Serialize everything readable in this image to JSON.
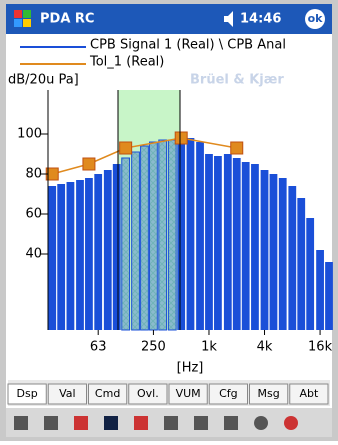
{
  "status_bar": {
    "app": "PDA RC",
    "time": "14:46",
    "ok": "ok"
  },
  "watermark": "Brüel & Kjær",
  "chart_data": {
    "type": "bar",
    "y_label": "dB/20u Pa]",
    "x_label": "[Hz]",
    "log_x": true,
    "xlim": [
      18,
      19500
    ],
    "ylim": [
      2,
      122
    ],
    "xticks": [
      63,
      250,
      {
        "value": 1000,
        "label": "1k"
      },
      {
        "value": 4000,
        "label": "4k"
      },
      {
        "value": 16000,
        "label": "16k"
      }
    ],
    "yticks": [
      40,
      60,
      80,
      100
    ],
    "series": [
      {
        "name": "CPB Signal 1 (Real) \\ CPB Anal",
        "type": "bar",
        "color": "#1a4fd8",
        "x": [
          20,
          25,
          31.5,
          40,
          50,
          63,
          80,
          100,
          125,
          160,
          200,
          250,
          315,
          400,
          500,
          630,
          800,
          1000,
          1250,
          1600,
          2000,
          2500,
          3150,
          4000,
          5000,
          6300,
          8000,
          10000,
          12500,
          16000,
          20000
        ],
        "values": [
          74,
          75,
          76,
          77,
          78,
          80,
          82,
          85,
          88,
          91,
          94,
          96,
          97,
          97,
          98,
          98,
          96,
          90,
          89,
          90,
          88,
          86,
          85,
          82,
          80,
          78,
          74,
          68,
          58,
          42,
          36
        ]
      },
      {
        "name": "Tol_1 (Real)",
        "type": "line",
        "color": "#e08a1e",
        "x": [
          20,
          50,
          125,
          500,
          2000
        ],
        "values": [
          80,
          85,
          93,
          98,
          93
        ]
      }
    ]
  },
  "tabs": [
    "Dsp",
    "Val",
    "Cmd",
    "Ovl.",
    "VUM",
    "Cfg",
    "Msg",
    "Abt"
  ]
}
